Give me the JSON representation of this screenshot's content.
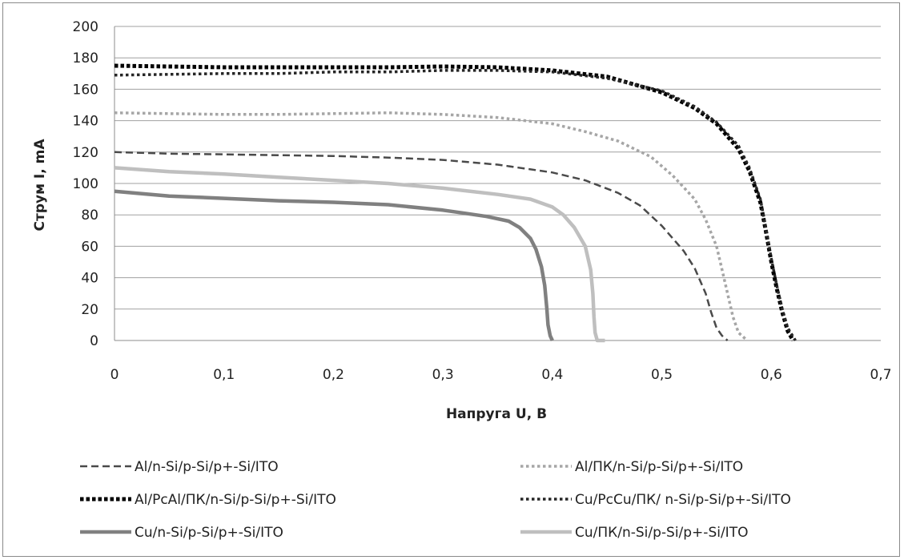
{
  "chart_data": {
    "type": "line",
    "title": "",
    "xlabel": "Напруга U, В",
    "ylabel": "Струм I, mA",
    "xlim": [
      0,
      0.7
    ],
    "ylim": [
      0,
      200
    ],
    "x_ticks": [
      "0",
      "0,1",
      "0,2",
      "0,3",
      "0,4",
      "0,5",
      "0,6",
      "0,7"
    ],
    "y_ticks": [
      "0",
      "20",
      "40",
      "60",
      "80",
      "100",
      "120",
      "140",
      "160",
      "180",
      "200"
    ],
    "grid": "horizontal",
    "legend_position": "bottom",
    "series": [
      {
        "name": "Al/n-Si/p-Si/p+-Si/ITO",
        "color": "#4a4a4a",
        "style": "dash",
        "points": [
          [
            0,
            120
          ],
          [
            0.05,
            119
          ],
          [
            0.1,
            118.5
          ],
          [
            0.15,
            118
          ],
          [
            0.2,
            117.5
          ],
          [
            0.25,
            116.5
          ],
          [
            0.3,
            115
          ],
          [
            0.35,
            112
          ],
          [
            0.4,
            107
          ],
          [
            0.43,
            102
          ],
          [
            0.46,
            94
          ],
          [
            0.48,
            86
          ],
          [
            0.5,
            73
          ],
          [
            0.52,
            57
          ],
          [
            0.53,
            46
          ],
          [
            0.54,
            30
          ],
          [
            0.545,
            18
          ],
          [
            0.55,
            8
          ],
          [
            0.555,
            3
          ],
          [
            0.56,
            0
          ]
        ]
      },
      {
        "name": "Al/ПК/n-Si/p-Si/p+-Si/ITO",
        "color": "#a6a6a6",
        "style": "dot",
        "points": [
          [
            0,
            145
          ],
          [
            0.05,
            144.5
          ],
          [
            0.1,
            144
          ],
          [
            0.15,
            144
          ],
          [
            0.2,
            144.5
          ],
          [
            0.25,
            145
          ],
          [
            0.3,
            144
          ],
          [
            0.35,
            142
          ],
          [
            0.4,
            138
          ],
          [
            0.43,
            133
          ],
          [
            0.46,
            127
          ],
          [
            0.49,
            117
          ],
          [
            0.51,
            105
          ],
          [
            0.53,
            90
          ],
          [
            0.54,
            77
          ],
          [
            0.55,
            60
          ],
          [
            0.555,
            45
          ],
          [
            0.56,
            30
          ],
          [
            0.565,
            15
          ],
          [
            0.57,
            5
          ],
          [
            0.578,
            0
          ]
        ]
      },
      {
        "name": "Al/PcAl/ПК/n-Si/p-Si/p+-Si/ITO",
        "color": "#000000",
        "style": "dot-bold",
        "points": [
          [
            0,
            175
          ],
          [
            0.05,
            174.5
          ],
          [
            0.1,
            174
          ],
          [
            0.15,
            174
          ],
          [
            0.2,
            174
          ],
          [
            0.25,
            174
          ],
          [
            0.3,
            174.5
          ],
          [
            0.35,
            174
          ],
          [
            0.4,
            172
          ],
          [
            0.45,
            168
          ],
          [
            0.5,
            158
          ],
          [
            0.53,
            148
          ],
          [
            0.55,
            138
          ],
          [
            0.57,
            122
          ],
          [
            0.58,
            108
          ],
          [
            0.59,
            88
          ],
          [
            0.595,
            70
          ],
          [
            0.6,
            50
          ],
          [
            0.605,
            33
          ],
          [
            0.61,
            18
          ],
          [
            0.615,
            6
          ],
          [
            0.62,
            0
          ]
        ]
      },
      {
        "name": "Cu/PcCu/ПК/ n-Si/p-Si/p+-Si/ITO",
        "color": "#262626",
        "style": "dot",
        "points": [
          [
            0,
            169
          ],
          [
            0.05,
            169.5
          ],
          [
            0.1,
            170
          ],
          [
            0.15,
            170
          ],
          [
            0.2,
            171
          ],
          [
            0.25,
            171
          ],
          [
            0.3,
            172
          ],
          [
            0.35,
            172
          ],
          [
            0.4,
            171
          ],
          [
            0.45,
            167
          ],
          [
            0.5,
            159
          ],
          [
            0.53,
            149
          ],
          [
            0.55,
            139
          ],
          [
            0.57,
            124
          ],
          [
            0.58,
            110
          ],
          [
            0.59,
            90
          ],
          [
            0.595,
            72
          ],
          [
            0.6,
            52
          ],
          [
            0.605,
            35
          ],
          [
            0.61,
            20
          ],
          [
            0.615,
            8
          ],
          [
            0.622,
            0
          ]
        ]
      },
      {
        "name": "Cu/n-Si/p-Si/p+-Si/ITO",
        "color": "#808080",
        "style": "solid",
        "points": [
          [
            0,
            95
          ],
          [
            0.05,
            92
          ],
          [
            0.1,
            90.5
          ],
          [
            0.15,
            89
          ],
          [
            0.2,
            88
          ],
          [
            0.25,
            86.5
          ],
          [
            0.3,
            83
          ],
          [
            0.32,
            81
          ],
          [
            0.34,
            79
          ],
          [
            0.36,
            76
          ],
          [
            0.37,
            72
          ],
          [
            0.38,
            65
          ],
          [
            0.385,
            58
          ],
          [
            0.39,
            47
          ],
          [
            0.393,
            35
          ],
          [
            0.395,
            20
          ],
          [
            0.396,
            10
          ],
          [
            0.398,
            3
          ],
          [
            0.4,
            0
          ]
        ]
      },
      {
        "name": "Cu/ПК/n-Si/p-Si/p+-Si/ITO",
        "color": "#bfbfbf",
        "style": "solid",
        "points": [
          [
            0,
            110
          ],
          [
            0.05,
            107.5
          ],
          [
            0.1,
            106
          ],
          [
            0.15,
            104
          ],
          [
            0.2,
            102
          ],
          [
            0.25,
            100
          ],
          [
            0.3,
            97
          ],
          [
            0.35,
            93
          ],
          [
            0.38,
            90
          ],
          [
            0.4,
            85
          ],
          [
            0.41,
            80
          ],
          [
            0.42,
            72
          ],
          [
            0.43,
            60
          ],
          [
            0.435,
            45
          ],
          [
            0.437,
            30
          ],
          [
            0.438,
            15
          ],
          [
            0.439,
            5
          ],
          [
            0.441,
            0
          ],
          [
            0.448,
            0
          ]
        ]
      }
    ]
  }
}
